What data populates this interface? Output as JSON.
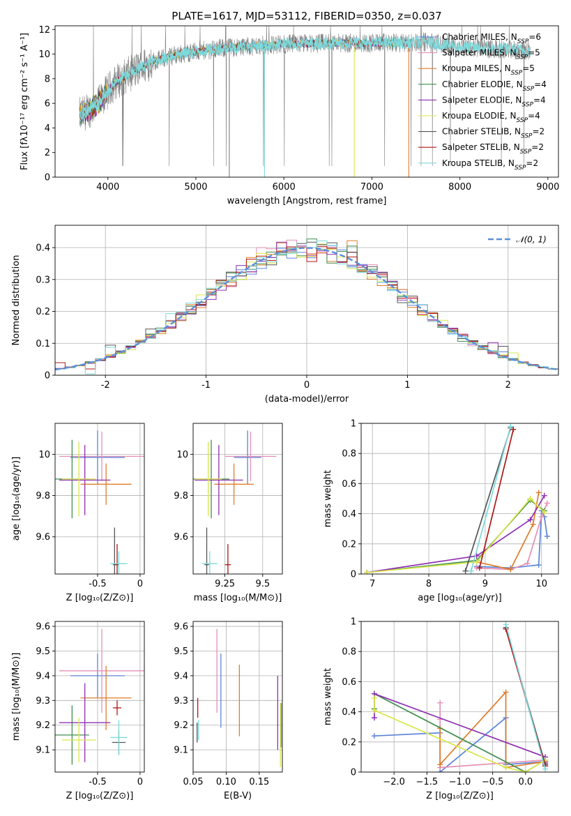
{
  "figure": {
    "title": "PLATE=1617, MJD=53112, FIBERID=0350, z=0.037"
  },
  "colors": {
    "chabrier_miles": "#5b84d9",
    "salpeter_miles": "#e58fb6",
    "kroupa_miles": "#e07b29",
    "chabrier_elodie": "#3f8f4e",
    "salpeter_elodie": "#8e2fb0",
    "kroupa_elodie": "#d9e649",
    "chabrier_stelib": "#555555",
    "salpeter_stelib": "#b01515",
    "kroupa_stelib": "#7dd9db",
    "gaussian": "#5b8fd9"
  },
  "chart_data": [
    {
      "id": "spectrum",
      "type": "line",
      "xlabel": "wavelength [Angstrom, rest frame]",
      "ylabel": "Flux [fλ10⁻¹⁷ erg cm⁻² s⁻¹ A⁻¹]",
      "xlim": [
        3400,
        9120
      ],
      "ylim": [
        0,
        12.3
      ],
      "xticks": [
        4000,
        5000,
        6000,
        7000,
        8000,
        9000
      ],
      "yticks": [
        0,
        2,
        4,
        6,
        8,
        10,
        12
      ],
      "legend_position": "right",
      "legend": [
        "Chabrier MILES, N_SSP=6",
        "Salpeter MILES, N_SSP=5",
        "Kroupa MILES, N_SSP=5",
        "Chabrier ELODIE, N_SSP=4",
        "Salpeter ELODIE, N_SSP=4",
        "Kroupa ELODIE, N_SSP=4",
        "Chabrier STELIB, N_SSP=2",
        "Salpeter STELIB, N_SSP=2",
        "Kroupa STELIB, N_SSP=2"
      ],
      "continuum": {
        "x": [
          3680,
          3800,
          3900,
          4000,
          4100,
          4300,
          4500,
          4800,
          5000,
          5200,
          5500,
          6000,
          6500,
          7000,
          7400,
          7600,
          8000,
          8500,
          8800
        ],
        "y": [
          5.0,
          5.5,
          6.0,
          7.0,
          7.8,
          8.6,
          9.4,
          10.0,
          10.2,
          10.4,
          10.6,
          10.8,
          10.9,
          10.9,
          10.9,
          11.0,
          10.6,
          10.4,
          10.3
        ]
      },
      "observed_spectrum": {
        "x_range": [
          3680,
          8800
        ],
        "y_min": 0.9,
        "y_max": 12.3
      },
      "model_range": [
        3680,
        7450
      ]
    },
    {
      "id": "residual-histogram",
      "type": "line",
      "xlabel": "(data-model)/error",
      "ylabel": "Normed distribution",
      "xlim": [
        -2.5,
        2.5
      ],
      "ylim": [
        0,
        0.47
      ],
      "xticks": [
        -2,
        -1,
        0,
        1,
        2
      ],
      "yticks": [
        0.0,
        0.1,
        0.2,
        0.3,
        0.4
      ],
      "legend_position": "top-right",
      "gaussian_label": "𝒩(0, 1)",
      "bin_width": 0.1
    },
    {
      "id": "age-vs-Z",
      "type": "scatter",
      "xlabel": "Z [log₁₀(Z/Z⊙)]",
      "ylabel": "age  [log₁₀(age/yr)]",
      "xlim": [
        -1.0,
        0.05
      ],
      "ylim": [
        9.42,
        10.15
      ],
      "xticks": [
        -0.5,
        0.0
      ],
      "yticks": [
        9.6,
        9.8,
        10.0
      ],
      "points": [
        {
          "model": "chabrier_miles",
          "x": -0.5,
          "xerr": 0.32,
          "y": 9.985,
          "yerr": 0.13
        },
        {
          "model": "salpeter_miles",
          "x": -0.45,
          "xerr": 0.5,
          "y": 9.99,
          "yerr": 0.12
        },
        {
          "model": "kroupa_miles",
          "x": -0.4,
          "xerr": 0.3,
          "y": 9.855,
          "yerr": 0.1
        },
        {
          "model": "chabrier_elodie",
          "x": -0.8,
          "xerr": 0.2,
          "y": 9.88,
          "yerr": 0.19
        },
        {
          "model": "salpeter_elodie",
          "x": -0.65,
          "xerr": 0.3,
          "y": 9.875,
          "yerr": 0.17
        },
        {
          "model": "kroupa_elodie",
          "x": -0.72,
          "xerr": 0.2,
          "y": 9.88,
          "yerr": 0.18
        },
        {
          "model": "chabrier_stelib",
          "x": -0.3,
          "xerr": 0.02,
          "y": 9.465,
          "yerr": 0.18
        },
        {
          "model": "salpeter_stelib",
          "x": -0.27,
          "xerr": 0.02,
          "y": 9.465,
          "yerr": 0.1
        },
        {
          "model": "kroupa_stelib",
          "x": -0.25,
          "xerr": 0.1,
          "y": 9.47,
          "yerr": 0.06
        }
      ]
    },
    {
      "id": "age-vs-mass",
      "type": "scatter",
      "xlabel": "mass [log₁₀(M/M⊙)]",
      "ylabel": "",
      "xlim": [
        9.04,
        9.63
      ],
      "ylim": [
        9.42,
        10.15
      ],
      "xticks": [
        9.25,
        9.5
      ],
      "yticks": [
        9.6,
        9.8,
        10.0
      ],
      "points": [
        {
          "model": "chabrier_miles",
          "x": 9.4,
          "xerr": 0.09,
          "y": 9.985,
          "yerr": 0.13
        },
        {
          "model": "salpeter_miles",
          "x": 9.42,
          "xerr": 0.17,
          "y": 9.99,
          "yerr": 0.12
        },
        {
          "model": "kroupa_miles",
          "x": 9.31,
          "xerr": 0.13,
          "y": 9.855,
          "yerr": 0.1
        },
        {
          "model": "chabrier_elodie",
          "x": 9.16,
          "xerr": 0.12,
          "y": 9.88,
          "yerr": 0.19
        },
        {
          "model": "salpeter_elodie",
          "x": 9.21,
          "xerr": 0.16,
          "y": 9.875,
          "yerr": 0.17
        },
        {
          "model": "kroupa_elodie",
          "x": 9.14,
          "xerr": 0.09,
          "y": 9.88,
          "yerr": 0.18
        },
        {
          "model": "chabrier_stelib",
          "x": 9.13,
          "xerr": 0.015,
          "y": 9.465,
          "yerr": 0.18
        },
        {
          "model": "salpeter_stelib",
          "x": 9.27,
          "xerr": 0.02,
          "y": 9.465,
          "yerr": 0.1
        },
        {
          "model": "kroupa_stelib",
          "x": 9.15,
          "xerr": 0.05,
          "y": 9.47,
          "yerr": 0.06
        }
      ]
    },
    {
      "id": "mass-weight-vs-age",
      "type": "line",
      "xlabel": "age  [log₁₀(age/yr)]",
      "ylabel": "mass weight",
      "xlim": [
        6.8,
        10.3
      ],
      "ylim": [
        0,
        1.0
      ],
      "xticks": [
        7,
        8,
        9,
        10
      ],
      "yticks": [
        0.0,
        0.2,
        0.4,
        0.6,
        0.8,
        1.0
      ],
      "series": [
        {
          "model": "chabrier_miles",
          "x": [
            8.85,
            9.45,
            9.95,
            10.0,
            10.05,
            10.1
          ],
          "y": [
            0.05,
            0.04,
            0.06,
            0.42,
            0.38,
            0.25
          ]
        },
        {
          "model": "salpeter_miles",
          "x": [
            8.85,
            9.45,
            9.75,
            10.0,
            10.1
          ],
          "y": [
            0.04,
            0.03,
            0.07,
            0.38,
            0.47
          ]
        },
        {
          "model": "kroupa_miles",
          "x": [
            8.85,
            9.45,
            9.85,
            9.95
          ],
          "y": [
            0.08,
            0.03,
            0.33,
            0.54
          ]
        },
        {
          "model": "chabrier_elodie",
          "x": [
            6.9,
            8.85,
            9.8,
            10.05
          ],
          "y": [
            0.01,
            0.09,
            0.49,
            0.42
          ]
        },
        {
          "model": "salpeter_elodie",
          "x": [
            6.9,
            8.85,
            9.8,
            10.05
          ],
          "y": [
            0.01,
            0.12,
            0.36,
            0.52
          ]
        },
        {
          "model": "kroupa_elodie",
          "x": [
            6.9,
            8.85,
            9.8,
            10.05
          ],
          "y": [
            0.01,
            0.08,
            0.5,
            0.41
          ]
        },
        {
          "model": "chabrier_stelib",
          "x": [
            8.65,
            9.45
          ],
          "y": [
            0.02,
            0.97
          ]
        },
        {
          "model": "salpeter_stelib",
          "x": [
            8.9,
            9.5
          ],
          "y": [
            0.04,
            0.96
          ]
        },
        {
          "model": "kroupa_stelib",
          "x": [
            8.75,
            9.45
          ],
          "y": [
            0.02,
            0.98
          ]
        }
      ]
    },
    {
      "id": "mass-vs-Z",
      "type": "scatter",
      "xlabel": "Z [log₁₀(Z/Z⊙)]",
      "ylabel": "mass [log₁₀(M/M⊙)]",
      "xlim": [
        -1.0,
        0.05
      ],
      "ylim": [
        9.01,
        9.62
      ],
      "xticks": [
        -0.5,
        0.0
      ],
      "yticks": [
        9.1,
        9.2,
        9.3,
        9.4,
        9.5,
        9.6
      ],
      "points": [
        {
          "model": "chabrier_miles",
          "x": -0.5,
          "xerr": 0.32,
          "y": 9.4,
          "yerr": 0.09
        },
        {
          "model": "salpeter_miles",
          "x": -0.45,
          "xerr": 0.5,
          "y": 9.42,
          "yerr": 0.17
        },
        {
          "model": "kroupa_miles",
          "x": -0.4,
          "xerr": 0.3,
          "y": 9.31,
          "yerr": 0.13
        },
        {
          "model": "chabrier_elodie",
          "x": -0.8,
          "xerr": 0.2,
          "y": 9.16,
          "yerr": 0.12
        },
        {
          "model": "salpeter_elodie",
          "x": -0.65,
          "xerr": 0.3,
          "y": 9.21,
          "yerr": 0.16
        },
        {
          "model": "kroupa_elodie",
          "x": -0.72,
          "xerr": 0.2,
          "y": 9.14,
          "yerr": 0.09
        },
        {
          "model": "chabrier_stelib",
          "x": -0.25,
          "xerr": 0.08,
          "y": 9.13,
          "yerr": 0.05
        },
        {
          "model": "salpeter_stelib",
          "x": -0.27,
          "xerr": 0.05,
          "y": 9.27,
          "yerr": 0.03
        },
        {
          "model": "kroupa_stelib",
          "x": -0.25,
          "xerr": 0.1,
          "y": 9.15,
          "yerr": 0.07
        }
      ]
    },
    {
      "id": "mass-vs-ebv",
      "type": "scatter",
      "xlabel": "E(B-V)",
      "ylabel": "",
      "xlim": [
        0.05,
        0.185
      ],
      "ylim": [
        9.01,
        9.62
      ],
      "xticks": [
        0.05,
        0.1,
        0.15
      ],
      "xtick_labels": [
        "0.05",
        "0.10",
        "0.15"
      ],
      "yticks": [
        9.1,
        9.2,
        9.3,
        9.4,
        9.5,
        9.6
      ],
      "points": [
        {
          "model": "chabrier_miles",
          "x": 0.092,
          "y": 9.34,
          "yerr": 0.15
        },
        {
          "model": "salpeter_miles",
          "x": 0.086,
          "y": 9.42,
          "yerr": 0.17
        },
        {
          "model": "kroupa_miles",
          "x": 0.12,
          "y": 9.3,
          "yerr": 0.145
        },
        {
          "model": "chabrier_elodie",
          "x": 0.183,
          "y": 9.2,
          "yerr": 0.09
        },
        {
          "model": "salpeter_elodie",
          "x": 0.178,
          "y": 9.25,
          "yerr": 0.15
        },
        {
          "model": "kroupa_elodie",
          "x": 0.182,
          "y": 9.16,
          "yerr": 0.13
        },
        {
          "model": "chabrier_stelib",
          "x": 0.056,
          "y": 9.17,
          "yerr": 0.04
        },
        {
          "model": "salpeter_stelib",
          "x": 0.057,
          "y": 9.27,
          "yerr": 0.04
        },
        {
          "model": "kroupa_stelib",
          "x": 0.058,
          "y": 9.18,
          "yerr": 0.04
        }
      ]
    },
    {
      "id": "mass-weight-vs-Z",
      "type": "line",
      "xlabel": "Z [log₁₀(Z/Z⊙)]",
      "ylabel": "mass weight",
      "xlim": [
        -2.5,
        0.5
      ],
      "ylim": [
        0,
        1.0
      ],
      "xticks": [
        -2.0,
        -1.5,
        -1.0,
        -0.5,
        0.0
      ],
      "xtick_labels": [
        "−2.0",
        "−1.5",
        "−1.0",
        "−0.5",
        "0.0"
      ],
      "yticks": [
        0.0,
        0.2,
        0.4,
        0.6,
        0.8,
        1.0
      ],
      "series": [
        {
          "model": "chabrier_miles",
          "x": [
            -2.3,
            -1.3,
            -1.3,
            -0.3,
            -0.3,
            0.3,
            0.3
          ],
          "y": [
            0.24,
            0.26,
            0.0,
            0.36,
            0.05,
            0.07,
            0.04
          ]
        },
        {
          "model": "salpeter_miles",
          "x": [
            -1.3,
            -1.3,
            -1.3,
            0.3,
            0.3
          ],
          "y": [
            0.46,
            0.35,
            0.03,
            0.08,
            0.05
          ]
        },
        {
          "model": "kroupa_miles",
          "x": [
            -1.3,
            -1.3,
            -0.3,
            -0.3,
            0.3,
            0.3
          ],
          "y": [
            0.29,
            0.05,
            0.53,
            0.03,
            0.07,
            0.05
          ]
        },
        {
          "model": "chabrier_elodie",
          "x": [
            -2.3,
            -2.3,
            0.0,
            0.3
          ],
          "y": [
            0.42,
            0.52,
            0.0,
            0.08
          ]
        },
        {
          "model": "salpeter_elodie",
          "x": [
            -2.3,
            -2.3,
            0.3,
            0.3
          ],
          "y": [
            0.36,
            0.52,
            0.1,
            0.06
          ]
        },
        {
          "model": "kroupa_elodie",
          "x": [
            -2.3,
            -2.3,
            -0.3,
            0.0,
            0.3
          ],
          "y": [
            0.49,
            0.41,
            0.03,
            0.0,
            0.08
          ]
        },
        {
          "model": "chabrier_stelib",
          "x": [
            -0.3,
            0.3
          ],
          "y": [
            0.96,
            0.05
          ]
        },
        {
          "model": "salpeter_stelib",
          "x": [
            -0.3,
            0.3
          ],
          "y": [
            0.95,
            0.04
          ]
        },
        {
          "model": "kroupa_stelib",
          "x": [
            -0.3,
            0.3
          ],
          "y": [
            0.98,
            0.02
          ]
        }
      ]
    }
  ]
}
